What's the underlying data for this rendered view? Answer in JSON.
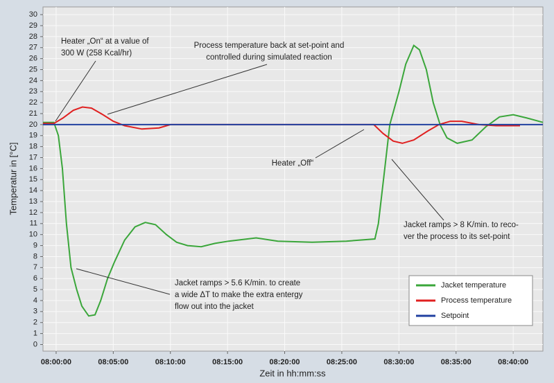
{
  "chart_data": {
    "type": "line",
    "ylabel": "Temperatur in [°C]",
    "xlabel": "Zeit in hh:mm:ss",
    "xlim": [
      "07:58:51",
      "08:42:36"
    ],
    "xticks": [
      "08:00:00",
      "08:05:00",
      "08:10:00",
      "08:15:00",
      "08:20:00",
      "08:25:00",
      "08:30:00",
      "08:35:00",
      "08:40:00"
    ],
    "ylim": [
      -0.6,
      30.7
    ],
    "yticks": [
      0,
      1,
      2,
      3,
      4,
      5,
      6,
      7,
      8,
      9,
      10,
      11,
      12,
      13,
      14,
      15,
      16,
      17,
      18,
      19,
      20,
      21,
      22,
      23,
      24,
      25,
      26,
      27,
      28,
      29,
      30
    ],
    "grid": true,
    "legend": "lower right",
    "series": [
      {
        "name": "Jacket temperature",
        "color": "#3aa63a",
        "x": [
          "07:58:51",
          "07:59:48",
          "08:00:12",
          "08:00:33",
          "08:00:54",
          "08:01:18",
          "08:01:48",
          "08:02:15",
          "08:02:51",
          "08:03:24",
          "08:03:54",
          "08:04:30",
          "08:05:06",
          "08:06:00",
          "08:06:54",
          "08:07:48",
          "08:08:42",
          "08:09:39",
          "08:10:33",
          "08:11:30",
          "08:12:42",
          "08:13:54",
          "08:15:06",
          "08:17:30",
          "08:19:24",
          "08:22:24",
          "08:25:24",
          "08:27:54",
          "08:28:12",
          "08:28:39",
          "08:29:12",
          "08:30:00",
          "08:30:36",
          "08:31:18",
          "08:31:48",
          "08:32:24",
          "08:33:00",
          "08:33:36",
          "08:34:12",
          "08:35:06",
          "08:36:24",
          "08:37:36",
          "08:38:48",
          "08:40:00",
          "08:41:12",
          "08:42:36"
        ],
        "values": [
          20.2,
          20.2,
          19,
          16,
          11,
          7,
          5,
          3.5,
          2.6,
          2.7,
          4,
          6,
          7.5,
          9.5,
          10.7,
          11.1,
          10.9,
          10,
          9.3,
          9,
          8.9,
          9.2,
          9.4,
          9.7,
          9.4,
          9.3,
          9.4,
          9.6,
          11,
          15,
          20,
          23,
          25.5,
          27.2,
          26.8,
          25,
          22,
          20,
          18.8,
          18.3,
          18.6,
          19.8,
          20.7,
          20.9,
          20.6,
          20.2
        ]
      },
      {
        "name": "Process temperature",
        "color": "#e02020",
        "x": [
          "07:58:51",
          "07:59:48",
          "08:00:36",
          "08:01:30",
          "08:02:18",
          "08:03:06",
          "08:04:06",
          "08:05:00",
          "08:06:00",
          "08:07:30",
          "08:09:00",
          "08:10:00",
          "08:15:00",
          "08:20:00",
          "08:25:00",
          "08:27:48",
          "08:28:36",
          "08:29:30",
          "08:30:18",
          "08:31:18",
          "08:32:30",
          "08:33:30",
          "08:34:30",
          "08:35:30",
          "08:37:00",
          "08:38:30",
          "08:40:36"
        ],
        "values": [
          20.1,
          20.1,
          20.6,
          21.3,
          21.6,
          21.5,
          20.9,
          20.3,
          19.9,
          19.6,
          19.7,
          20,
          20,
          20,
          20,
          20,
          19.2,
          18.5,
          18.3,
          18.6,
          19.4,
          20,
          20.3,
          20.3,
          20,
          19.9,
          19.9
        ]
      },
      {
        "name": "Setpoint",
        "color": "#2040a0",
        "x": [
          "07:58:51",
          "08:42:36"
        ],
        "values": [
          20,
          20
        ]
      }
    ],
    "annotations": [
      {
        "lines": [
          "Heater „On“ at a value of",
          "300 W (258 Kcal/hr)"
        ]
      },
      {
        "lines": [
          "Process temperature back at set-point and",
          "controlled during simulated reaction"
        ]
      },
      {
        "lines": [
          "Heater „Off“"
        ]
      },
      {
        "lines": [
          "Jacket ramps > 8 K/min. to reco-",
          "ver the process to its set-point"
        ]
      },
      {
        "lines": [
          "Jacket ramps > 5.6 K/min. to create",
          "a wide ΔT to make the extra entergy",
          "flow out into the jacket"
        ]
      }
    ]
  }
}
